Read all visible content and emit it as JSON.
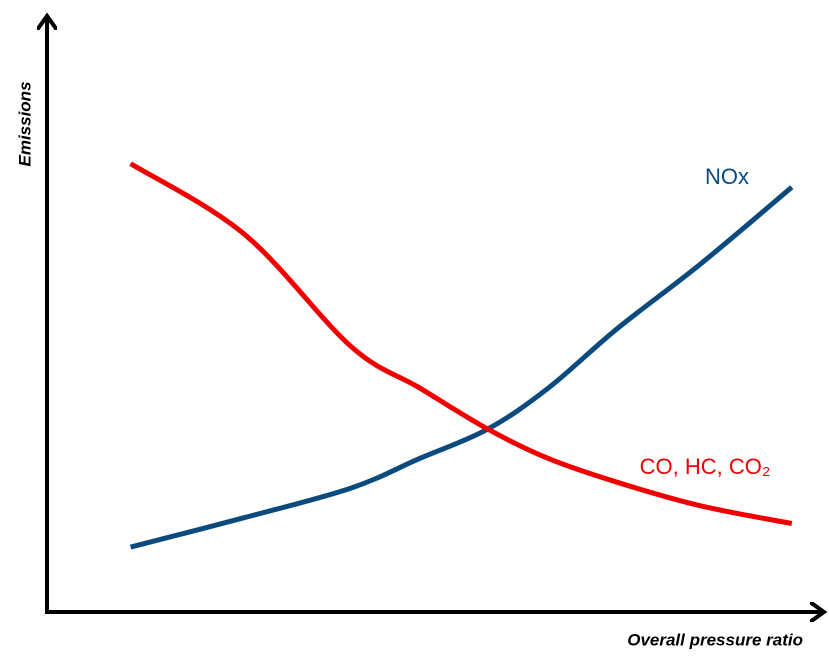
{
  "chart_data": {
    "type": "line",
    "x_label": "Overall pressure ratio",
    "y_label": "Emissions",
    "x": [
      1.1,
      2.6,
      4.0,
      4.9,
      5.8,
      6.6,
      7.5,
      8.6,
      9.8
    ],
    "xlim": [
      0,
      10
    ],
    "ylim": [
      0,
      10
    ],
    "series": [
      {
        "name": "NOx",
        "color": "#0b4a7d",
        "values": [
          1.1,
          1.6,
          2.1,
          2.6,
          3.1,
          3.8,
          4.8,
          5.9,
          7.2
        ]
      },
      {
        "name": "CO, HC, CO₂",
        "color": "#f00000",
        "values": [
          7.6,
          6.4,
          4.5,
          3.8,
          3.1,
          2.6,
          2.2,
          1.8,
          1.5
        ]
      }
    ]
  }
}
